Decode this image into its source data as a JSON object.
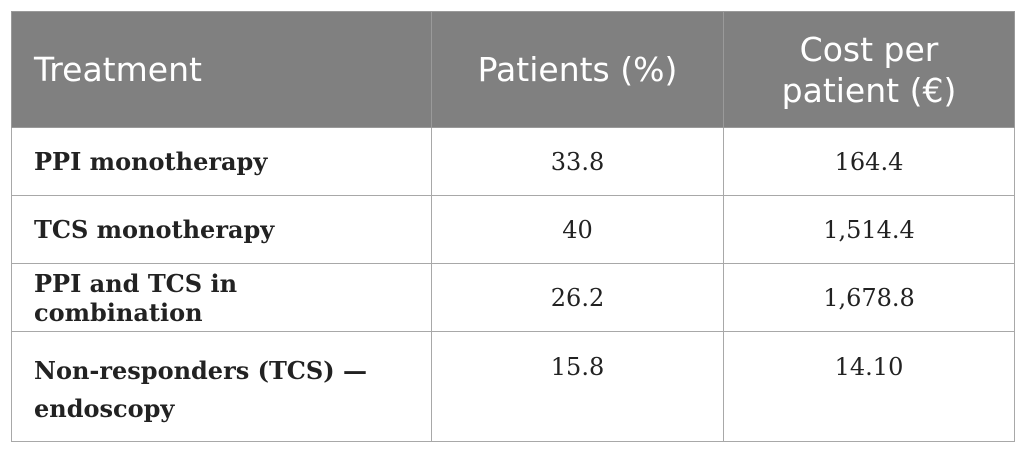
{
  "table": {
    "headers": {
      "treatment": "Treatment",
      "patients": "Patients (%)",
      "cost": "Cost per patient (€)"
    },
    "rows": [
      {
        "treatment": "PPI monotherapy",
        "patients": "33.8",
        "cost": "164.4"
      },
      {
        "treatment": "TCS monotherapy",
        "patients": "40",
        "cost": "1,514.4"
      },
      {
        "treatment": "PPI and TCS in combination",
        "patients": "26.2",
        "cost": "1,678.8"
      },
      {
        "treatment": "Non-responders (TCS) —endoscopy",
        "patients": "15.8",
        "cost": "14.10"
      }
    ]
  }
}
